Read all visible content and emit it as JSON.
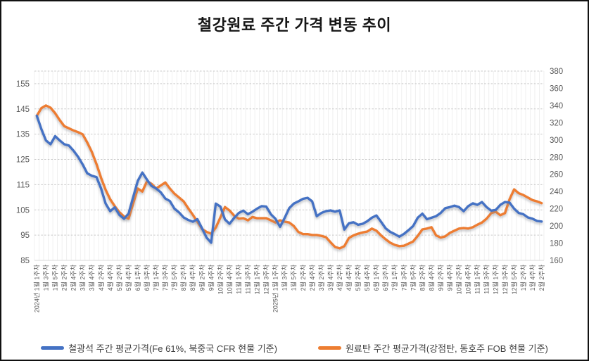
{
  "title": "철강원료 주간 가격 변동 추이",
  "chart_data": {
    "type": "line",
    "title": "철강원료 주간 가격 변동 추이",
    "weeks_total": 111,
    "x_label_interval": 2,
    "x_tick_labels": [
      "2024년 1월 1주차",
      "1월 3주차",
      "1월 5주차",
      "2월 2주차",
      "2월 4주차",
      "3월 2주차",
      "3월 4주차",
      "4월 2주차",
      "4월 4주차",
      "5월 2주차",
      "5월 4주차",
      "6월 1주차",
      "6월 3주차",
      "7월 1주차",
      "7월 3주차",
      "7월 5주차",
      "8월 2주차",
      "8월 4주차",
      "9월 2주차",
      "9월 4주차",
      "10월 2주차",
      "10월 4주차",
      "11월 1주차",
      "11월 3주차",
      "12월 1주차",
      "12월 3주차",
      "2025년 1월 1주차",
      "1월 3주차",
      "1월 5주차",
      "2월 2주차",
      "2월 4주차",
      "3월 2주차",
      "3월 4주차",
      "4월 2주차",
      "4월 4주차",
      "5월 2주차",
      "5월 4주차",
      "6월 1주차",
      "6월 3주차",
      "7월 1주차",
      "7월 3주차",
      "7월 5주차",
      "8월 2주차",
      "8월 4주차",
      "9월 2주차",
      "9월 4주차",
      "10월 2주차",
      "10월 4주차",
      "11월 1주차",
      "11월 3주차",
      "12월 1주차",
      "12월 3주차",
      "12월 5주차",
      "1월 2주차",
      "1월 4주차",
      "2월 2주차"
    ],
    "left_axis": {
      "min": 85,
      "max": 160,
      "tick_labels": [
        85,
        95,
        105,
        115,
        125,
        135,
        145,
        155
      ]
    },
    "right_axis": {
      "min": 160,
      "max": 380,
      "tick_labels": [
        160,
        180,
        200,
        220,
        240,
        260,
        280,
        300,
        320,
        340,
        360,
        380
      ]
    },
    "grid": {
      "horizontal": "dashed",
      "vertical_minor": true
    },
    "legend_position": "bottom",
    "series": [
      {
        "name": "철광석 주간 평균가격(Fe 61%, 북중국 CFR 현물 기준)",
        "axis": "left",
        "color": "#4472C4",
        "values": [
          142.3,
          137,
          132.5,
          131,
          134.2,
          132.5,
          131,
          130.5,
          128.5,
          126,
          123,
          119.5,
          118.5,
          118,
          113.5,
          107.5,
          104.5,
          106,
          103,
          101.5,
          103.5,
          110,
          116.5,
          119.8,
          117,
          114.5,
          113.5,
          112,
          109.5,
          108.5,
          105.5,
          104,
          102,
          101,
          100.3,
          101.3,
          97.7,
          94,
          92,
          107.5,
          106.3,
          101.2,
          99.5,
          101.8,
          103.8,
          104.7,
          103.3,
          104.3,
          105.5,
          106.5,
          106.3,
          103.3,
          101.5,
          98.3,
          101.8,
          105.7,
          107.5,
          108.4,
          109.4,
          109.8,
          108.4,
          102.5,
          103.8,
          104.5,
          104.8,
          104.3,
          104.8,
          97.2,
          99.7,
          100.1,
          99.1,
          99.5,
          100.5,
          101.9,
          102.8,
          100.3,
          97.7,
          96.3,
          95.4,
          94.4,
          95.5,
          97,
          98.6,
          101.9,
          103.5,
          101.3,
          101.9,
          102.5,
          103.8,
          105.7,
          106.1,
          106.7,
          106.1,
          104.5,
          106.5,
          107.6,
          107,
          108.1,
          106.1,
          104.7,
          105,
          107,
          108.1,
          107.9,
          105.5,
          103.8,
          103.3,
          102,
          101.5,
          100.6,
          100.4
        ]
      },
      {
        "name": "원료탄 주간 평균가격(강점탄, 동호주 FOB 현물 기준)",
        "axis": "right",
        "color": "#ED7D31",
        "values": [
          328,
          337,
          340,
          337.5,
          331,
          323,
          316,
          313.5,
          311,
          309,
          306.5,
          297,
          286,
          272,
          256,
          242,
          231,
          223,
          216,
          211,
          208.5,
          226,
          243.5,
          240,
          252,
          249,
          243.5,
          247,
          250.5,
          243.5,
          237.5,
          233,
          228.5,
          220.5,
          213,
          205,
          196.5,
          193,
          191,
          198,
          210,
          222,
          218,
          212,
          208.5,
          209,
          206.5,
          210.5,
          209,
          209,
          209,
          206.5,
          204,
          206.5,
          205,
          204,
          200,
          193,
          190.5,
          190.5,
          189.5,
          189.5,
          188.5,
          187,
          181,
          175.5,
          174,
          176.5,
          186,
          189,
          191,
          192.5,
          193.5,
          197,
          194.5,
          189,
          184.5,
          180.5,
          178,
          176.5,
          177,
          179.5,
          182,
          188.5,
          196,
          197,
          198.5,
          189,
          186.5,
          188,
          192,
          194.5,
          197,
          197.5,
          197,
          198.5,
          201.5,
          204,
          208.5,
          215,
          216.5,
          212.5,
          215,
          231,
          242.5,
          238,
          236,
          233,
          230,
          228.5,
          226.5
        ]
      }
    ],
    "colors": {
      "iron_ore_line": "#4472C4",
      "coking_coal_line": "#ED7D31",
      "axis_text": "#595959",
      "gridline": "#C9C9C9",
      "minor_gridline": "#ECECEC",
      "title_text": "#151515"
    }
  }
}
